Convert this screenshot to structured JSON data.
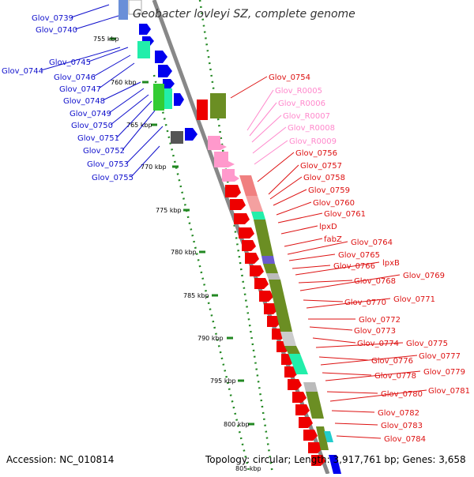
{
  "title": "Geobacter lovleyi SZ, complete genome",
  "accession": "Accession: NC_010814",
  "topology": "Topology: circular; Length: 3,917,761 bp; Genes: 3,658",
  "colors": {
    "left_labels": "#1010cc",
    "right_labels": "#dd1111",
    "rna_labels": "#ff88cc",
    "backbone": "#888888",
    "ticks": "#228822",
    "feature_blue": "#0000ee",
    "feature_red": "#ee0000",
    "feature_pink": "#ff99cc",
    "feature_olive": "#6b8e23",
    "feature_green": "#33cc33",
    "feature_teal": "#22eeaa",
    "feature_gray": "#555555",
    "feature_salmon": "#f08080"
  },
  "scale_labels": [
    "755 kbp",
    "760 kbp",
    "765 kbp",
    "770 kbp",
    "775 kbp",
    "780 kbp",
    "785 kbp",
    "790 kbp",
    "795 kbp",
    "800 kbp",
    "805 kbp"
  ],
  "left_genes": [
    "Glov_0739",
    "Glov_0740",
    "Glov_0744",
    "Glov_0745",
    "Glov_0746",
    "Glov_0747",
    "Glov_0748",
    "Glov_0749",
    "Glov_0750",
    "Glov_0751",
    "Glov_0752",
    "Glov_0753",
    "Glov_0755"
  ],
  "right_genes": [
    {
      "name": "Glov_0754",
      "kind": "cds"
    },
    {
      "name": "Glov_R0005",
      "kind": "rna"
    },
    {
      "name": "Glov_R0006",
      "kind": "rna"
    },
    {
      "name": "Glov_R0007",
      "kind": "rna"
    },
    {
      "name": "Glov_R0008",
      "kind": "rna"
    },
    {
      "name": "Glov_R0009",
      "kind": "rna"
    },
    {
      "name": "Glov_0756",
      "kind": "cds"
    },
    {
      "name": "Glov_0757",
      "kind": "cds"
    },
    {
      "name": "Glov_0758",
      "kind": "cds"
    },
    {
      "name": "Glov_0759",
      "kind": "cds"
    },
    {
      "name": "Glov_0760",
      "kind": "cds"
    },
    {
      "name": "Glov_0761",
      "kind": "cds"
    },
    {
      "name": "lpxD",
      "kind": "cds"
    },
    {
      "name": "fabZ",
      "kind": "cds"
    },
    {
      "name": "Glov_0764",
      "kind": "cds"
    },
    {
      "name": "Glov_0765",
      "kind": "cds"
    },
    {
      "name": "Glov_0766",
      "kind": "cds"
    },
    {
      "name": "lpxB",
      "kind": "cds"
    },
    {
      "name": "Glov_0768",
      "kind": "cds"
    },
    {
      "name": "Glov_0769",
      "kind": "cds"
    },
    {
      "name": "Glov_0770",
      "kind": "cds"
    },
    {
      "name": "Glov_0771",
      "kind": "cds"
    },
    {
      "name": "Glov_0772",
      "kind": "cds"
    },
    {
      "name": "Glov_0773",
      "kind": "cds"
    },
    {
      "name": "Glov_0774",
      "kind": "cds"
    },
    {
      "name": "Glov_0775",
      "kind": "cds"
    },
    {
      "name": "Glov_0776",
      "kind": "cds"
    },
    {
      "name": "Glov_0777",
      "kind": "cds"
    },
    {
      "name": "Glov_0778",
      "kind": "cds"
    },
    {
      "name": "Glov_0779",
      "kind": "cds"
    },
    {
      "name": "Glov_0780",
      "kind": "cds"
    },
    {
      "name": "Glov_0781",
      "kind": "cds"
    },
    {
      "name": "Glov_0782",
      "kind": "cds"
    },
    {
      "name": "Glov_0783",
      "kind": "cds"
    },
    {
      "name": "Glov_0784",
      "kind": "cds"
    }
  ]
}
